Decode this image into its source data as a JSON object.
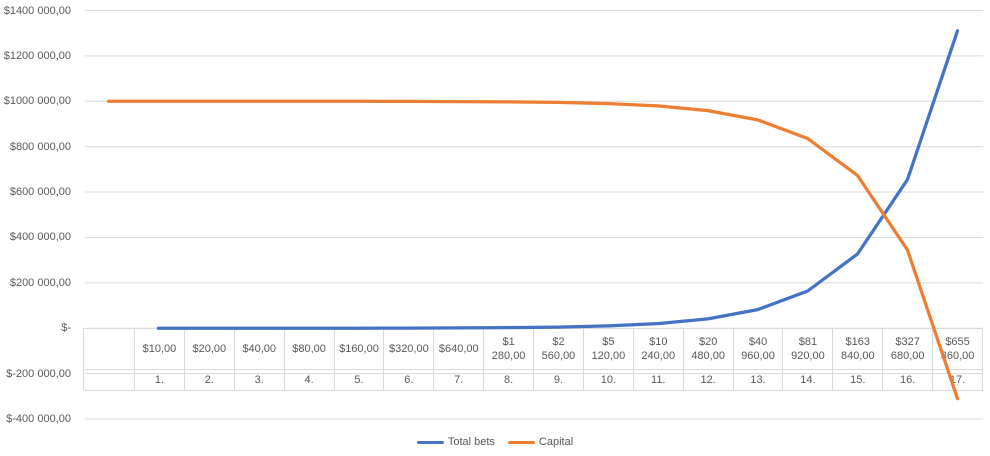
{
  "chart_data": {
    "type": "line",
    "title": "",
    "grid": true,
    "legend_position": "bottom",
    "x_axis": {
      "bet_labels": [
        "",
        "$10,00",
        "$20,00",
        "$40,00",
        "$80,00",
        "$160,00",
        "$320,00",
        "$640,00",
        "$1 280,00",
        "$2 560,00",
        "$5 120,00",
        "$10 240,00",
        "$20 480,00",
        "$40 960,00",
        "$81 920,00",
        "$163 840,00",
        "$327 680,00",
        "$655 360,00"
      ],
      "round_labels": [
        "",
        "1.",
        "2.",
        "3.",
        "4.",
        "5.",
        "6.",
        "7.",
        "8.",
        "9.",
        "10.",
        "11.",
        "12.",
        "13.",
        "14.",
        "15.",
        "16.",
        "17."
      ]
    },
    "y_axis": {
      "min": -400000,
      "max": 1400000,
      "step": 200000,
      "tick_labels": [
        "$1400 000,00",
        "$1200 000,00",
        "$1000 000,00",
        "$800 000,00",
        "$600 000,00",
        "$400 000,00",
        "$200 000,00",
        "$-",
        "$-200 000,00",
        "$-400 000,00"
      ]
    },
    "series": [
      {
        "name": "Total bets",
        "color": "#4472C4",
        "points": [
          [
            1,
            10
          ],
          [
            2,
            30
          ],
          [
            3,
            70
          ],
          [
            4,
            150
          ],
          [
            5,
            310
          ],
          [
            6,
            630
          ],
          [
            7,
            1270
          ],
          [
            8,
            2550
          ],
          [
            9,
            5110
          ],
          [
            10,
            10230
          ],
          [
            11,
            20470
          ],
          [
            12,
            40950
          ],
          [
            13,
            81910
          ],
          [
            14,
            163830
          ],
          [
            15,
            327670
          ],
          [
            16,
            655350
          ],
          [
            17,
            1310710
          ]
        ]
      },
      {
        "name": "Capital",
        "color": "#ED7D31",
        "points": [
          [
            0,
            1000000
          ],
          [
            1,
            999990
          ],
          [
            2,
            999970
          ],
          [
            3,
            999930
          ],
          [
            4,
            999850
          ],
          [
            5,
            999690
          ],
          [
            6,
            999370
          ],
          [
            7,
            998730
          ],
          [
            8,
            997450
          ],
          [
            9,
            994890
          ],
          [
            10,
            989770
          ],
          [
            11,
            979530
          ],
          [
            12,
            959050
          ],
          [
            13,
            918090
          ],
          [
            14,
            836170
          ],
          [
            15,
            672330
          ],
          [
            16,
            344650
          ],
          [
            17,
            -310710
          ]
        ]
      }
    ]
  },
  "colors": {
    "gridline": "#D9D9D9",
    "table_border": "#D9D9D9",
    "axis_text": "#595959",
    "background": "#FFFFFF"
  }
}
